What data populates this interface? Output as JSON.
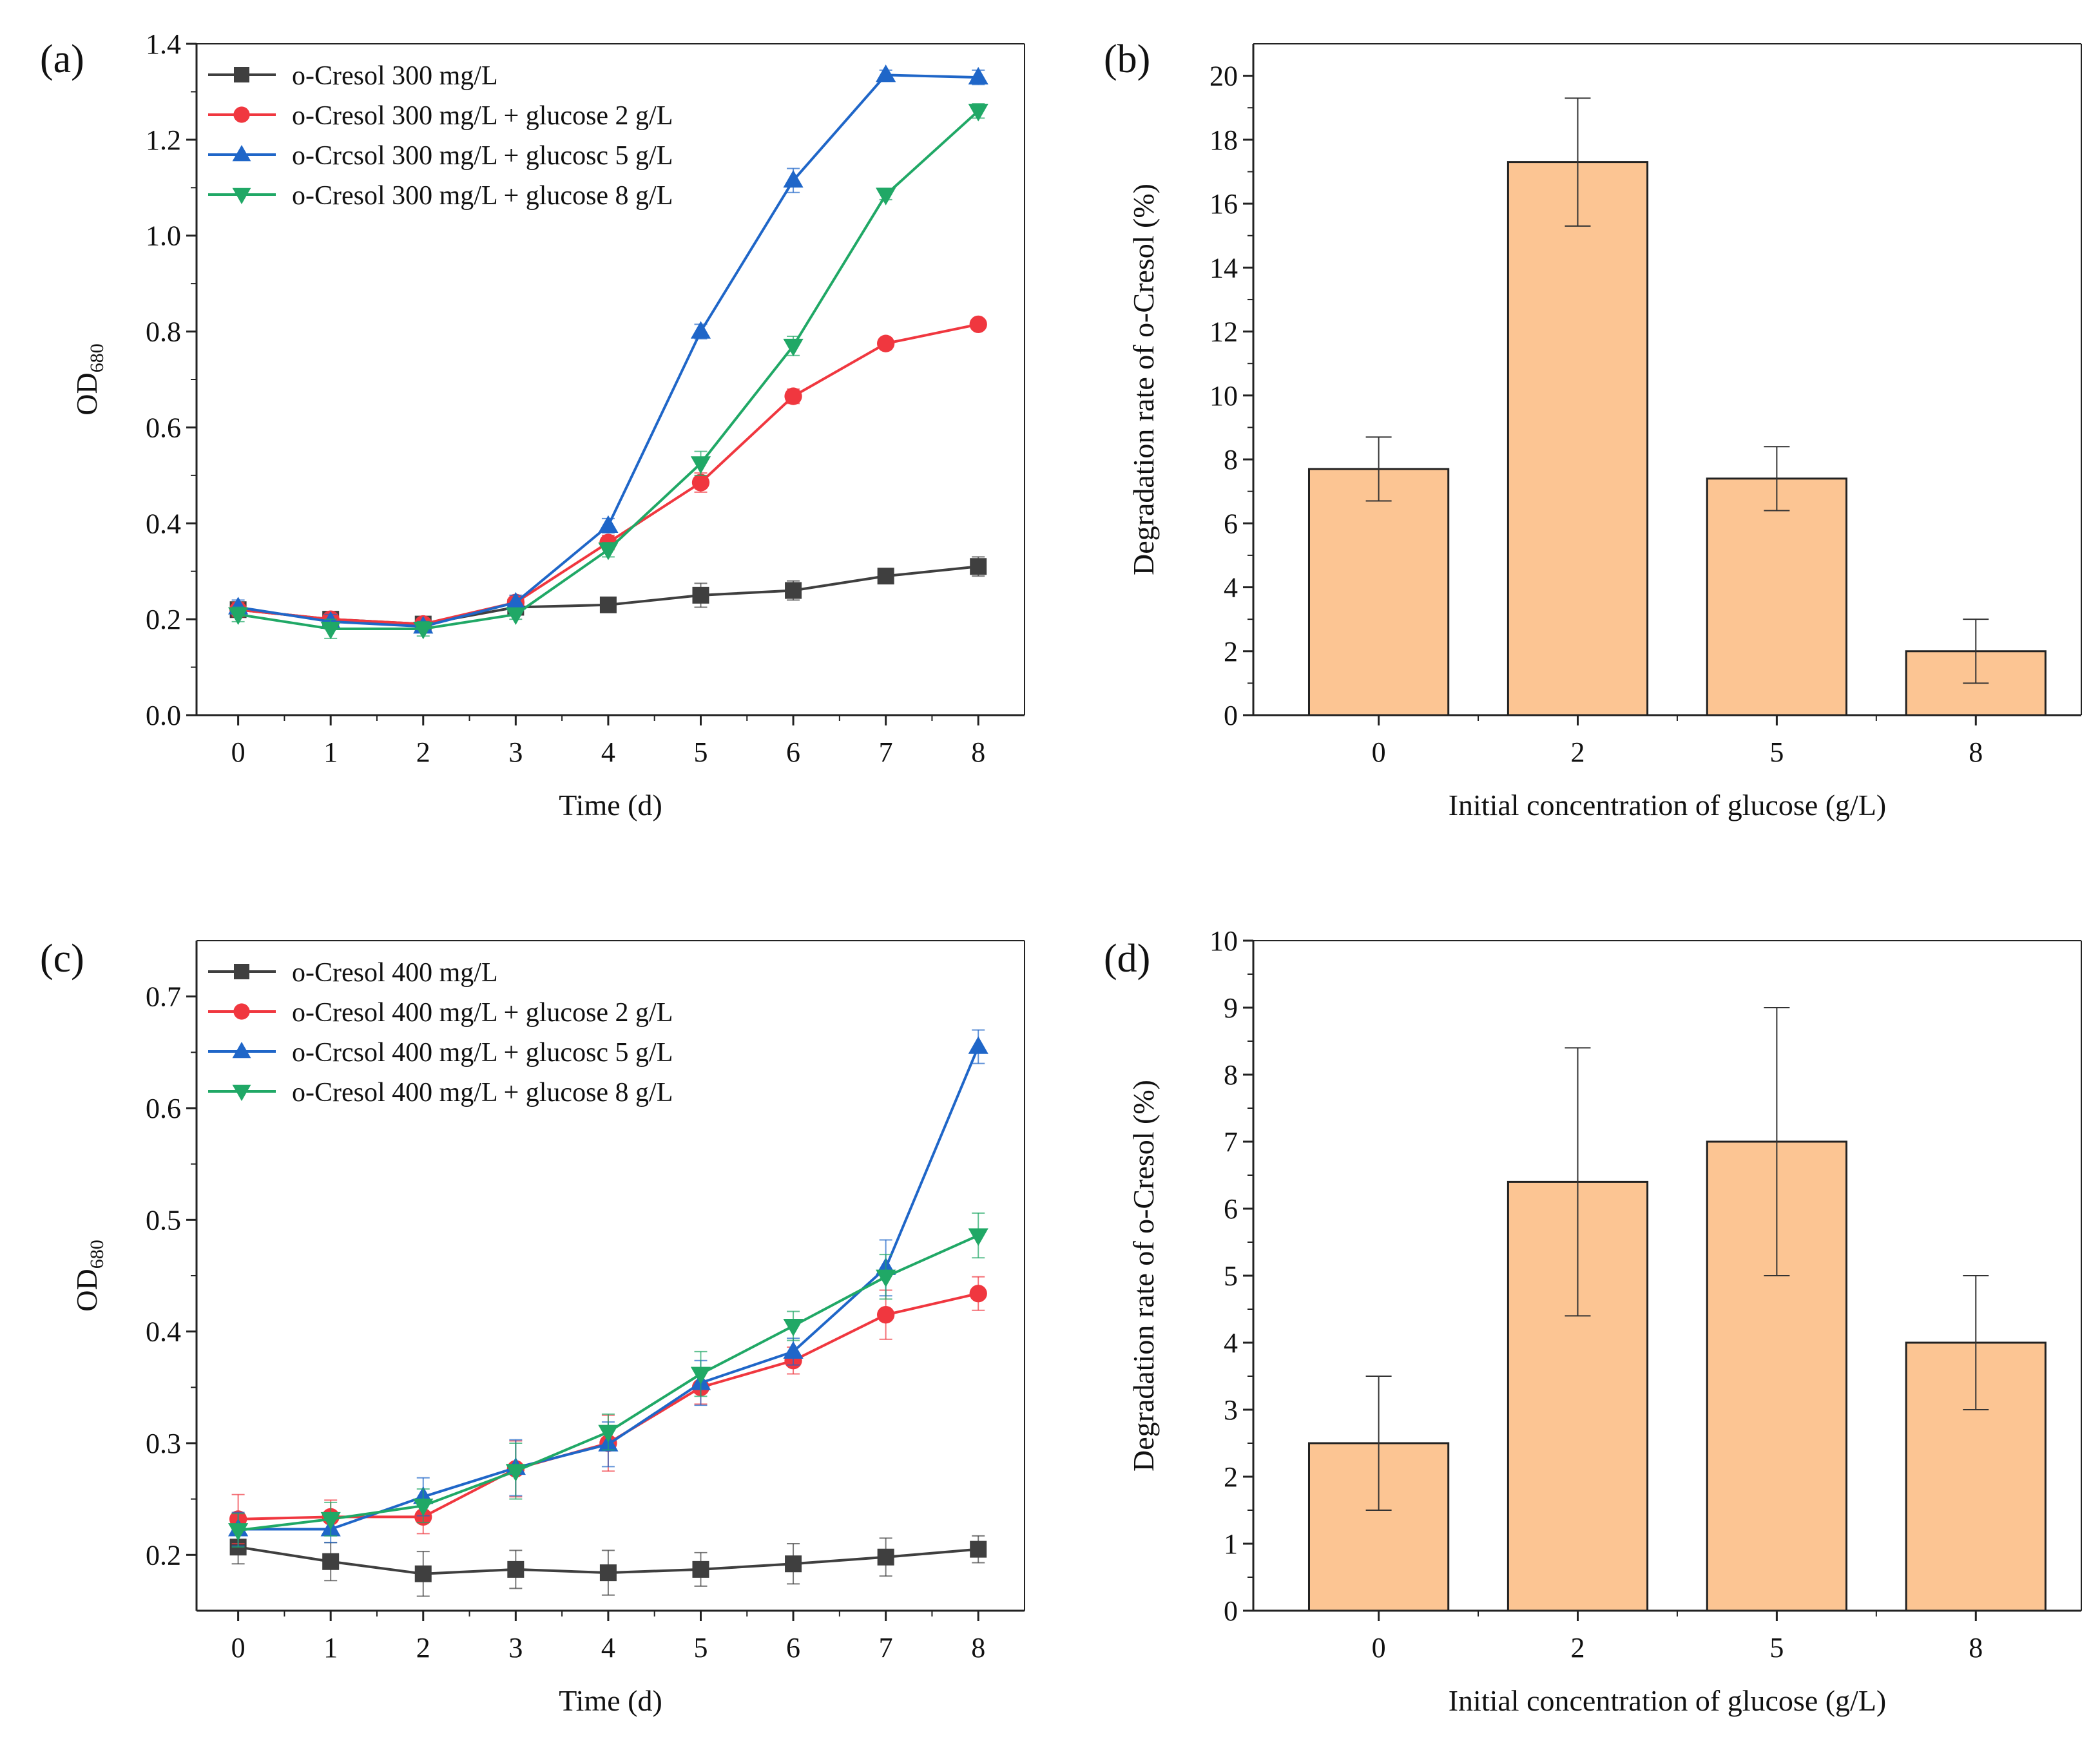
{
  "figure": {
    "panels": [
      "(a)",
      "(b)",
      "(c)",
      "(d)"
    ]
  },
  "colors": {
    "black": "#3f3f3f",
    "red": "#f0373f",
    "blue": "#1f66c8",
    "green": "#20a866",
    "bar_fill": "#fcc593",
    "bar_edge": "#222222"
  },
  "chart_data": [
    {
      "panel": "(a)",
      "type": "line",
      "title": "",
      "xlabel": "Time (d)",
      "ylabel": "OD",
      "ylabel_sub": "680",
      "x": [
        0,
        1,
        2,
        3,
        4,
        5,
        6,
        7,
        8
      ],
      "xlim": [
        -0.45,
        8.5
      ],
      "ylim": [
        0,
        1.4
      ],
      "yticks": [
        0.0,
        0.2,
        0.4,
        0.6,
        0.8,
        1.0,
        1.2,
        1.4
      ],
      "ytick_labels": [
        "0.0",
        "0.2",
        "0.4",
        "0.6",
        "0.8",
        "1.0",
        "1.2",
        "1.4"
      ],
      "legend_position": "top-left",
      "series": [
        {
          "name": "o-Cresol 300 mg/L",
          "marker": "square",
          "color": "#3f3f3f",
          "values": [
            0.22,
            0.2,
            0.19,
            0.225,
            0.23,
            0.25,
            0.26,
            0.29,
            0.31
          ],
          "errors": [
            0.015,
            0.01,
            0.01,
            0.01,
            0.01,
            0.025,
            0.02,
            0.015,
            0.02
          ]
        },
        {
          "name": "o-Cresol 300 mg/L + glucose 2 g/L",
          "marker": "circle",
          "color": "#f0373f",
          "values": [
            0.22,
            0.2,
            0.19,
            0.235,
            0.36,
            0.485,
            0.665,
            0.775,
            0.815
          ],
          "errors": [
            0.015,
            0.01,
            0.01,
            0.01,
            0.015,
            0.02,
            0.015,
            0.01,
            0.01
          ]
        },
        {
          "name": "o-Crcsol 300 mg/L + glucosc 5 g/L",
          "marker": "triangle-up",
          "color": "#1f66c8",
          "values": [
            0.225,
            0.195,
            0.185,
            0.235,
            0.395,
            0.8,
            1.115,
            1.335,
            1.33
          ],
          "errors": [
            0.015,
            0.015,
            0.01,
            0.015,
            0.015,
            0.015,
            0.025,
            0.01,
            0.015
          ]
        },
        {
          "name": "o-Cresol 300 mg/L + glucose 8 g/L",
          "marker": "triangle-down",
          "color": "#20a866",
          "values": [
            0.21,
            0.18,
            0.18,
            0.21,
            0.345,
            0.525,
            0.77,
            1.085,
            1.26
          ],
          "errors": [
            0.015,
            0.02,
            0.015,
            0.01,
            0.015,
            0.025,
            0.02,
            0.01,
            0.015
          ]
        }
      ]
    },
    {
      "panel": "(b)",
      "type": "bar",
      "title": "",
      "xlabel": "Initial concentration of glucose (g/L)",
      "ylabel": "Degradation rate of o-Cresol (%)",
      "categories": [
        "0",
        "2",
        "5",
        "8"
      ],
      "values": [
        7.7,
        17.3,
        7.4,
        2.0
      ],
      "errors": [
        1.0,
        2.0,
        1.0,
        1.0
      ],
      "ylim": [
        0,
        21
      ],
      "yticks": [
        0,
        2,
        4,
        6,
        8,
        10,
        12,
        14,
        16,
        18,
        20
      ],
      "ytick_labels": [
        "0",
        "2",
        "4",
        "6",
        "8",
        "10",
        "12",
        "14",
        "16",
        "18",
        "20"
      ]
    },
    {
      "panel": "(c)",
      "type": "line",
      "title": "",
      "xlabel": "Time (d)",
      "ylabel": "OD",
      "ylabel_sub": "680",
      "x": [
        0,
        1,
        2,
        3,
        4,
        5,
        6,
        7,
        8
      ],
      "xlim": [
        -0.45,
        8.5
      ],
      "ylim": [
        0.15,
        0.75
      ],
      "yticks": [
        0.2,
        0.3,
        0.4,
        0.5,
        0.6,
        0.7
      ],
      "ytick_labels": [
        "0.2",
        "0.3",
        "0.4",
        "0.5",
        "0.6",
        "0.7"
      ],
      "legend_position": "top-left",
      "series": [
        {
          "name": "o-Cresol 400 mg/L",
          "marker": "square",
          "color": "#3f3f3f",
          "values": [
            0.207,
            0.194,
            0.183,
            0.187,
            0.184,
            0.187,
            0.192,
            0.198,
            0.205
          ],
          "errors": [
            0.015,
            0.017,
            0.02,
            0.017,
            0.02,
            0.015,
            0.018,
            0.017,
            0.012
          ]
        },
        {
          "name": "o-Cresol 400 mg/L + glucose 2 g/L",
          "marker": "circle",
          "color": "#f0373f",
          "values": [
            0.232,
            0.234,
            0.234,
            0.277,
            0.3,
            0.35,
            0.374,
            0.415,
            0.434
          ],
          "errors": [
            0.022,
            0.015,
            0.015,
            0.025,
            0.025,
            0.015,
            0.012,
            0.022,
            0.015
          ]
        },
        {
          "name": "o-Crcsol 400 mg/L + glucosc 5 g/L",
          "marker": "triangle-up",
          "color": "#1f66c8",
          "values": [
            0.223,
            0.223,
            0.252,
            0.278,
            0.299,
            0.354,
            0.382,
            0.457,
            0.655
          ],
          "errors": [
            0.015,
            0.012,
            0.017,
            0.025,
            0.02,
            0.02,
            0.012,
            0.025,
            0.015
          ]
        },
        {
          "name": "o-Cresol 400 mg/L + glucose 8 g/L",
          "marker": "triangle-down",
          "color": "#20a866",
          "values": [
            0.222,
            0.232,
            0.244,
            0.275,
            0.31,
            0.362,
            0.405,
            0.449,
            0.486
          ],
          "errors": [
            0.015,
            0.015,
            0.015,
            0.025,
            0.016,
            0.02,
            0.013,
            0.02,
            0.02
          ]
        }
      ]
    },
    {
      "panel": "(d)",
      "type": "bar",
      "title": "",
      "xlabel": "Initial concentration of glucose (g/L)",
      "ylabel": "Degradation rate of o-Cresol (%)",
      "categories": [
        "0",
        "2",
        "5",
        "8"
      ],
      "values": [
        2.5,
        6.4,
        7.0,
        4.0
      ],
      "errors": [
        1.0,
        2.0,
        2.0,
        1.0
      ],
      "ylim": [
        0,
        10
      ],
      "yticks": [
        0,
        1,
        2,
        3,
        4,
        5,
        6,
        7,
        8,
        9,
        10
      ],
      "ytick_labels": [
        "0",
        "1",
        "2",
        "3",
        "4",
        "5",
        "6",
        "7",
        "8",
        "9",
        "10"
      ]
    }
  ]
}
